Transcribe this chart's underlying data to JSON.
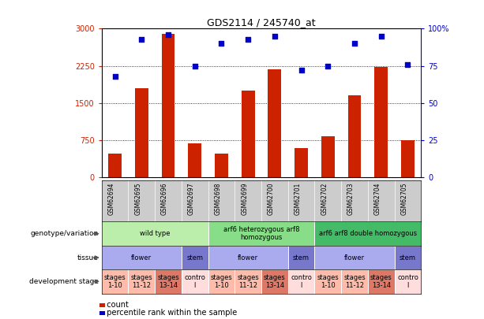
{
  "title": "GDS2114 / 245740_at",
  "samples": [
    "GSM62694",
    "GSM62695",
    "GSM62696",
    "GSM62697",
    "GSM62698",
    "GSM62699",
    "GSM62700",
    "GSM62701",
    "GSM62702",
    "GSM62703",
    "GSM62704",
    "GSM62705"
  ],
  "counts": [
    480,
    1800,
    2900,
    680,
    480,
    1750,
    2180,
    580,
    820,
    1650,
    2230,
    740
  ],
  "percentiles": [
    68,
    93,
    96,
    75,
    90,
    93,
    95,
    72,
    75,
    90,
    95,
    76
  ],
  "ylim_left": [
    0,
    3000
  ],
  "ylim_right": [
    0,
    100
  ],
  "yticks_left": [
    0,
    750,
    1500,
    2250,
    3000
  ],
  "yticks_right": [
    0,
    25,
    50,
    75,
    100
  ],
  "bar_color": "#cc2200",
  "dot_color": "#0000cc",
  "background_color": "#ffffff",
  "chart_bg": "#ffffff",
  "xticklabel_bg": "#cccccc",
  "genotype_groups": [
    {
      "label": "wild type",
      "start": 0,
      "end": 4,
      "color": "#bbeeaa"
    },
    {
      "label": "arf6 heterozygous arf8\nhomozygous",
      "start": 4,
      "end": 8,
      "color": "#88dd88"
    },
    {
      "label": "arf6 arf8 double homozygous",
      "start": 8,
      "end": 12,
      "color": "#44bb66"
    }
  ],
  "tissue_groups": [
    {
      "label": "flower",
      "start": 0,
      "end": 3,
      "color": "#aaaaee"
    },
    {
      "label": "stem",
      "start": 3,
      "end": 4,
      "color": "#7777cc"
    },
    {
      "label": "flower",
      "start": 4,
      "end": 7,
      "color": "#aaaaee"
    },
    {
      "label": "stem",
      "start": 7,
      "end": 8,
      "color": "#7777cc"
    },
    {
      "label": "flower",
      "start": 8,
      "end": 11,
      "color": "#aaaaee"
    },
    {
      "label": "stem",
      "start": 11,
      "end": 12,
      "color": "#7777cc"
    }
  ],
  "dev_stage_groups": [
    {
      "label": "stages\n1-10",
      "start": 0,
      "end": 1,
      "color": "#ffbbaa"
    },
    {
      "label": "stages\n11-12",
      "start": 1,
      "end": 2,
      "color": "#ffbbaa"
    },
    {
      "label": "stages\n13-14",
      "start": 2,
      "end": 3,
      "color": "#dd7766"
    },
    {
      "label": "contro\nl",
      "start": 3,
      "end": 4,
      "color": "#ffdddd"
    },
    {
      "label": "stages\n1-10",
      "start": 4,
      "end": 5,
      "color": "#ffbbaa"
    },
    {
      "label": "stages\n11-12",
      "start": 5,
      "end": 6,
      "color": "#ffbbaa"
    },
    {
      "label": "stages\n13-14",
      "start": 6,
      "end": 7,
      "color": "#dd7766"
    },
    {
      "label": "contro\nl",
      "start": 7,
      "end": 8,
      "color": "#ffdddd"
    },
    {
      "label": "stages\n1-10",
      "start": 8,
      "end": 9,
      "color": "#ffbbaa"
    },
    {
      "label": "stages\n11-12",
      "start": 9,
      "end": 10,
      "color": "#ffbbaa"
    },
    {
      "label": "stages\n13-14",
      "start": 10,
      "end": 11,
      "color": "#dd7766"
    },
    {
      "label": "contro\nl",
      "start": 11,
      "end": 12,
      "color": "#ffdddd"
    }
  ],
  "row_labels": [
    "genotype/variation",
    "tissue",
    "development stage"
  ],
  "legend_count_color": "#cc2200",
  "legend_pct_color": "#0000cc",
  "legend_count_label": "count",
  "legend_pct_label": "percentile rank within the sample"
}
